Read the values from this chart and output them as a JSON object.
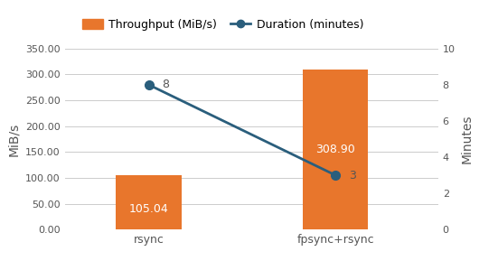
{
  "categories": [
    "rsync",
    "fpsync+rsync"
  ],
  "throughput": [
    105.04,
    308.9
  ],
  "duration": [
    8,
    3
  ],
  "bar_color": "#E8762C",
  "line_color": "#2A5E7C",
  "bar_label_color": "#FFFFFF",
  "left_ylim": [
    0,
    350
  ],
  "left_yticks": [
    0,
    50,
    100,
    150,
    200,
    250,
    300,
    350
  ],
  "left_ytick_labels": [
    "0.00",
    "50.00",
    "100.00",
    "150.00",
    "200.00",
    "250.00",
    "300.00",
    "350.00"
  ],
  "right_ylim": [
    0,
    10
  ],
  "right_yticks": [
    0,
    2,
    4,
    6,
    8,
    10
  ],
  "right_ytick_labels": [
    "0",
    "2",
    "4",
    "6",
    "8",
    "10"
  ],
  "left_ylabel": "MiB/s",
  "right_ylabel": "Minutes",
  "legend_throughput": "Throughput (MiB/s)",
  "legend_duration": "Duration (minutes)",
  "bar_width": 0.35,
  "x_positions": [
    0,
    1
  ],
  "background_color": "#FFFFFF",
  "grid_color": "#CCCCCC",
  "tick_label_color": "#555555",
  "axis_label_color": "#555555",
  "bar_label_fontsize": 9,
  "axis_tick_fontsize": 8,
  "legend_fontsize": 9
}
